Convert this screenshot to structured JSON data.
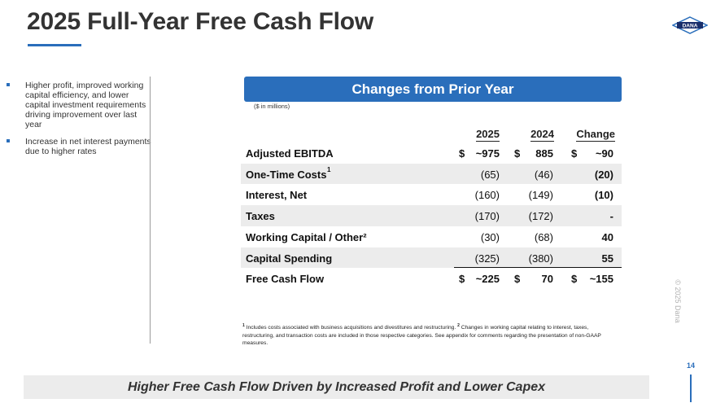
{
  "title": "2025 Full-Year Free Cash Flow",
  "logo_text": "DANA",
  "bullets": [
    "Higher profit, improved working capital efficiency, and lower capital investment requirements driving improvement over last year",
    "Increase in net interest payments due to higher rates"
  ],
  "banner_title": "Changes from Prior Year",
  "units_note": "($ in millions)",
  "columns": {
    "c2025": "2025",
    "c2024": "2024",
    "change": "Change"
  },
  "rows": [
    {
      "label": "Adjusted EBITDA",
      "sup": "",
      "d2025": "$",
      "v2025": "~975",
      "d2024": "$",
      "v2024": "885",
      "dchg": "$",
      "vchg": "~90"
    },
    {
      "label": "One-Time Costs",
      "sup": "1",
      "d2025": "",
      "v2025": "(65)",
      "d2024": "",
      "v2024": "(46)",
      "dchg": "",
      "vchg": "(20)"
    },
    {
      "label": "Interest, Net",
      "sup": "",
      "d2025": "",
      "v2025": "(160)",
      "d2024": "",
      "v2024": "(149)",
      "dchg": "",
      "vchg": "(10)"
    },
    {
      "label": "Taxes",
      "sup": "",
      "d2025": "",
      "v2025": "(170)",
      "d2024": "",
      "v2024": "(172)",
      "dchg": "",
      "vchg": "-"
    },
    {
      "label": "Working Capital / Other²",
      "sup": "",
      "d2025": "",
      "v2025": "(30)",
      "d2024": "",
      "v2024": "(68)",
      "dchg": "",
      "vchg": "40"
    },
    {
      "label": "Capital Spending",
      "sup": "",
      "d2025": "",
      "v2025": "(325)",
      "d2024": "",
      "v2024": "(380)",
      "dchg": "",
      "vchg": "55"
    },
    {
      "label": "Free Cash Flow",
      "sup": "",
      "d2025": "$",
      "v2025": "~225",
      "d2024": "$",
      "v2024": "70",
      "dchg": "$",
      "vchg": "~155"
    }
  ],
  "footnote": {
    "sup1": "1",
    "text1": " Includes costs associated with business acquisitions and divestitures and restructuring. ",
    "sup2": "2",
    "text2": " Changes in working capital relating to interest, taxes, restructuring, and transaction costs are included in those respective categories.  See appendix for comments regarding the presentation of non-GAAP measures."
  },
  "copyright": "© 2025 Dana",
  "page_number": "14",
  "bottom_banner": "Higher Free Cash Flow Driven by Increased Profit and Lower Capex",
  "colors": {
    "accent": "#2a6ebb",
    "shade": "#ececec"
  }
}
